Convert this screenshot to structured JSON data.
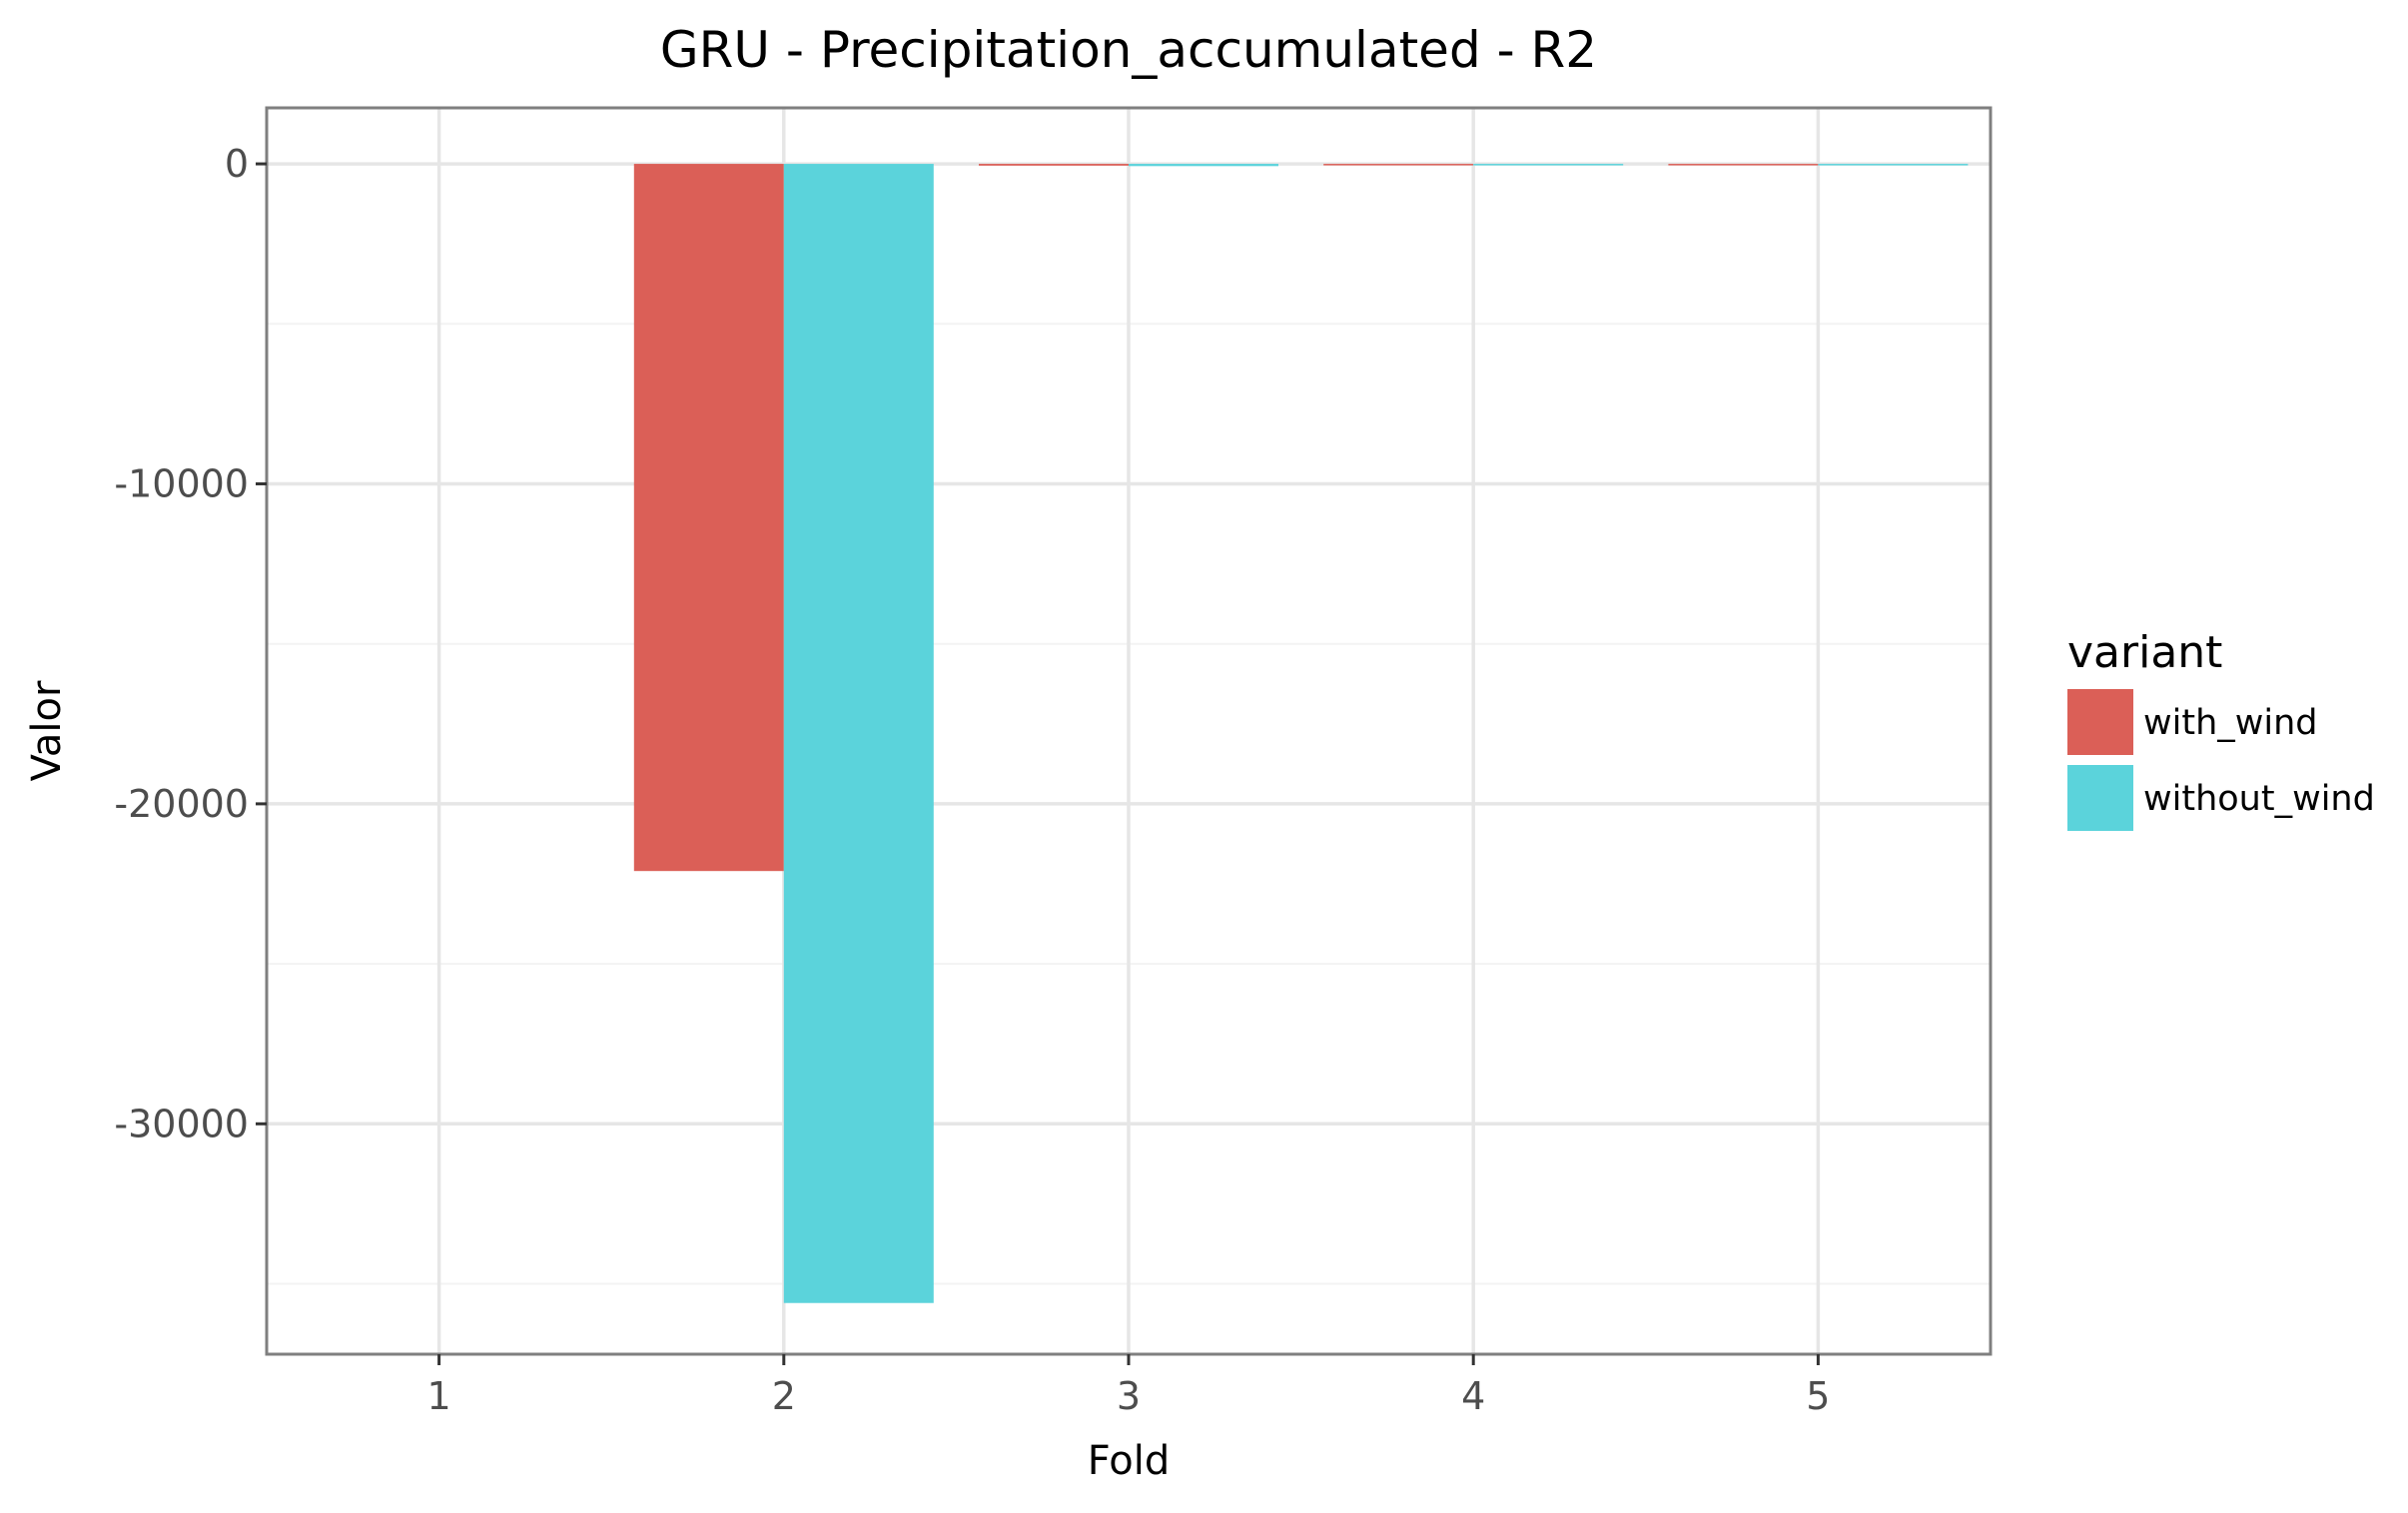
{
  "chart_data": {
    "type": "bar",
    "title": "GRU - Precipitation_accumulated - R2",
    "xlabel": "Fold",
    "ylabel": "Valor",
    "categories": [
      "1",
      "2",
      "3",
      "4",
      "5"
    ],
    "series": [
      {
        "name": "with_wind",
        "color": "#db5f57",
        "values": [
          0,
          -22100,
          -55,
          -8,
          -45
        ]
      },
      {
        "name": "without_wind",
        "color": "#5bd3db",
        "values": [
          0,
          -35600,
          -70,
          -20,
          -12
        ]
      }
    ],
    "y_ticks": [
      0,
      -10000,
      -20000,
      -30000
    ],
    "y_tick_labels": [
      "0",
      "-10000",
      "-20000",
      "-30000"
    ],
    "ylim": [
      -37200,
      1750
    ],
    "grid": true,
    "legend": {
      "title": "variant",
      "position": "right",
      "items": [
        "with_wind",
        "without_wind"
      ]
    }
  }
}
